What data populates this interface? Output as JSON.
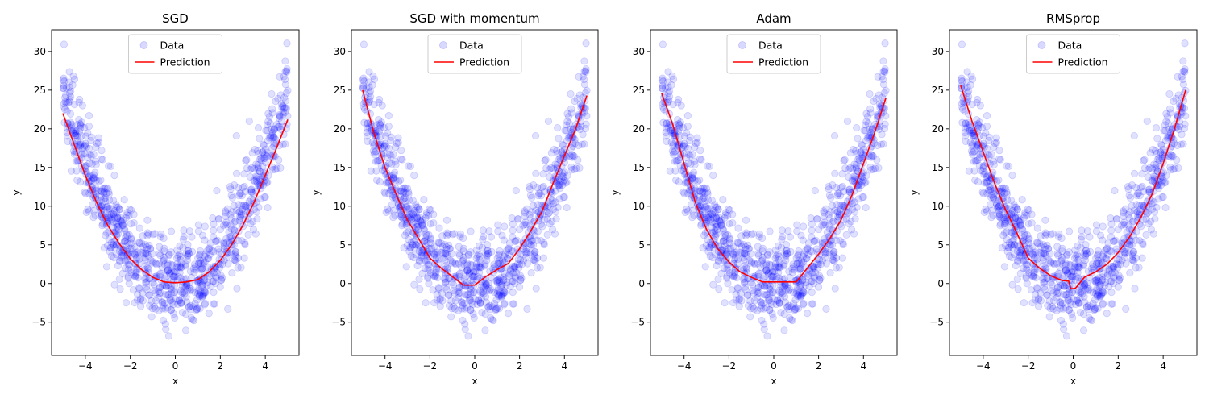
{
  "chart_data": [
    {
      "type": "scatter",
      "title": "SGD",
      "xlabel": "x",
      "ylabel": "y",
      "xlim": [
        -5.5,
        5.5
      ],
      "ylim": [
        -9.3,
        32.8
      ],
      "xticks": [
        -4,
        -2,
        0,
        2,
        4
      ],
      "yticks": [
        -5,
        0,
        5,
        10,
        15,
        20,
        25,
        30
      ],
      "grid": false,
      "legend_placement": "top-center",
      "series": [
        {
          "name": "Data",
          "kind": "scatter",
          "color": "#0000ff",
          "alpha": 0.12
        },
        {
          "name": "Prediction",
          "kind": "line",
          "color": "#ff0000",
          "x": [
            -5.0,
            -4.5,
            -4.0,
            -3.5,
            -3.0,
            -2.5,
            -2.0,
            -1.5,
            -1.0,
            -0.5,
            0.0,
            0.5,
            1.0,
            1.5,
            2.0,
            2.5,
            3.0,
            3.5,
            4.0,
            4.5,
            5.0
          ],
          "y": [
            22.0,
            18.0,
            14.0,
            10.5,
            7.5,
            5.2,
            3.2,
            1.8,
            0.8,
            0.2,
            0.1,
            0.2,
            0.5,
            1.5,
            3.0,
            5.0,
            7.5,
            10.5,
            14.0,
            17.5,
            21.2
          ]
        }
      ]
    },
    {
      "type": "scatter",
      "title": "SGD with momentum",
      "xlabel": "x",
      "ylabel": "y",
      "xlim": [
        -5.5,
        5.5
      ],
      "ylim": [
        -9.3,
        32.8
      ],
      "xticks": [
        -4,
        -2,
        0,
        2,
        4
      ],
      "yticks": [
        -5,
        0,
        5,
        10,
        15,
        20,
        25,
        30
      ],
      "grid": false,
      "legend_placement": "top-center",
      "series": [
        {
          "name": "Data",
          "kind": "scatter",
          "color": "#0000ff",
          "alpha": 0.12
        },
        {
          "name": "Prediction",
          "kind": "line",
          "color": "#ff0000",
          "x": [
            -5.0,
            -4.5,
            -4.0,
            -3.5,
            -3.0,
            -2.5,
            -2.0,
            -1.5,
            -1.0,
            -0.5,
            0.0,
            0.5,
            1.0,
            1.5,
            2.0,
            2.5,
            3.0,
            3.5,
            4.0,
            4.5,
            5.0
          ],
          "y": [
            25.0,
            19.5,
            15.0,
            11.5,
            8.2,
            5.8,
            3.3,
            2.0,
            0.9,
            -0.2,
            -0.2,
            0.9,
            1.8,
            2.6,
            4.5,
            6.8,
            9.3,
            13.0,
            16.5,
            20.0,
            24.3
          ]
        }
      ]
    },
    {
      "type": "scatter",
      "title": "Adam",
      "xlabel": "x",
      "ylabel": "y",
      "xlim": [
        -5.5,
        5.5
      ],
      "ylim": [
        -9.3,
        32.8
      ],
      "xticks": [
        -4,
        -2,
        0,
        2,
        4
      ],
      "yticks": [
        -5,
        0,
        5,
        10,
        15,
        20,
        25,
        30
      ],
      "grid": false,
      "legend_placement": "top-center",
      "series": [
        {
          "name": "Data",
          "kind": "scatter",
          "color": "#0000ff",
          "alpha": 0.12
        },
        {
          "name": "Prediction",
          "kind": "line",
          "color": "#ff0000",
          "x": [
            -5.0,
            -4.5,
            -4.0,
            -3.5,
            -3.0,
            -2.5,
            -2.0,
            -1.5,
            -1.0,
            -0.5,
            0.0,
            0.5,
            1.0,
            1.5,
            2.0,
            2.5,
            3.0,
            3.5,
            4.0,
            4.5,
            5.0
          ],
          "y": [
            24.6,
            20.5,
            15.5,
            10.5,
            7.0,
            4.5,
            2.8,
            1.5,
            0.8,
            0.2,
            0.2,
            0.2,
            0.2,
            2.0,
            3.8,
            5.8,
            8.2,
            11.5,
            15.5,
            19.5,
            24.0
          ]
        }
      ]
    },
    {
      "type": "scatter",
      "title": "RMSprop",
      "xlabel": "x",
      "ylabel": "y",
      "xlim": [
        -5.5,
        5.5
      ],
      "ylim": [
        -9.3,
        32.8
      ],
      "xticks": [
        -4,
        -2,
        0,
        2,
        4
      ],
      "yticks": [
        -5,
        0,
        5,
        10,
        15,
        20,
        25,
        30
      ],
      "grid": false,
      "legend_placement": "top-center",
      "series": [
        {
          "name": "Data",
          "kind": "scatter",
          "color": "#0000ff",
          "alpha": 0.12
        },
        {
          "name": "Prediction",
          "kind": "line",
          "color": "#ff0000",
          "x": [
            -5.0,
            -4.5,
            -4.0,
            -3.5,
            -3.0,
            -2.5,
            -2.0,
            -1.5,
            -1.0,
            -0.5,
            -0.2,
            -0.1,
            0.1,
            0.5,
            1.0,
            1.5,
            2.0,
            2.5,
            3.0,
            3.5,
            4.0,
            4.5,
            5.0
          ],
          "y": [
            25.6,
            21.0,
            17.0,
            13.0,
            9.5,
            6.5,
            3.3,
            2.0,
            1.0,
            0.4,
            0.3,
            -0.7,
            -0.6,
            0.8,
            1.5,
            2.5,
            4.0,
            6.0,
            8.5,
            11.5,
            15.5,
            20.0,
            25.0
          ]
        }
      ]
    }
  ]
}
